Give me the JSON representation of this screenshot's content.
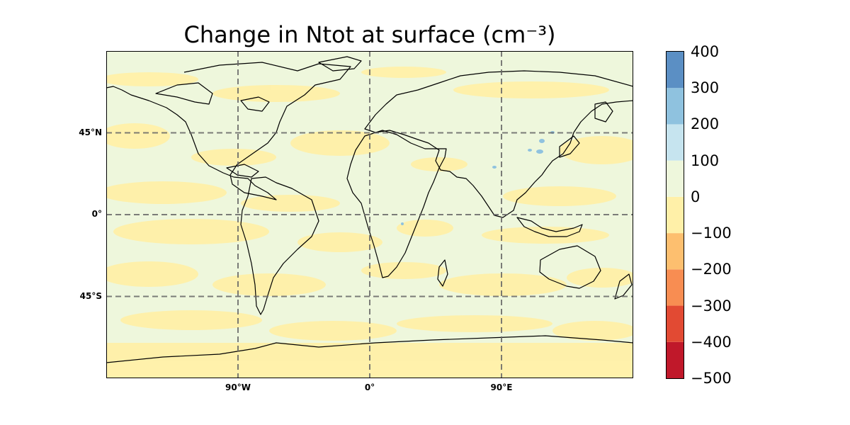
{
  "title": "Change in Ntot at surface (cm⁻³)",
  "map": {
    "projection": "PlateCarree",
    "extent_lon": [
      -180,
      180
    ],
    "extent_lat": [
      -90,
      90
    ],
    "gridline_style": "dashed",
    "gridline_color": "#666666",
    "coastline_color": "#000000",
    "lat_ticks": [
      {
        "value": 45,
        "label": "45°N"
      },
      {
        "value": 0,
        "label": "0°"
      },
      {
        "value": -45,
        "label": "45°S"
      }
    ],
    "lon_ticks": [
      {
        "value": -90,
        "label": "90°W"
      },
      {
        "value": 0,
        "label": "0°"
      },
      {
        "value": 90,
        "label": "90°E"
      }
    ],
    "background_color": "#eef7dc",
    "negative_patch_color": "#fff0a8"
  },
  "colorbar": {
    "levels": [
      -500,
      -400,
      -300,
      -200,
      -100,
      0,
      100,
      200,
      300,
      400
    ],
    "labels": [
      "−500",
      "−400",
      "−300",
      "−200",
      "−100",
      "0",
      "100",
      "200",
      "300",
      "400"
    ],
    "colors": [
      "#c0182a",
      "#e24a33",
      "#f88d52",
      "#fdbf6f",
      "#fff0a8",
      "#eef7dc",
      "#c6e4ef",
      "#8fc2df",
      "#5b8fc4"
    ]
  }
}
